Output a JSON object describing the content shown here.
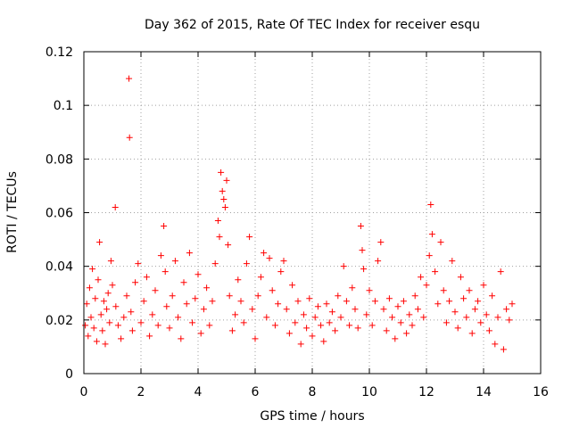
{
  "chart_data": {
    "type": "scatter",
    "title": "Day 362 of 2015, Rate Of TEC Index for receiver esqu",
    "xlabel": "GPS time / hours",
    "ylabel": "ROTI / TECUs",
    "xlim": [
      0,
      16
    ],
    "ylim": [
      0,
      0.12
    ],
    "x_ticks": [
      0,
      2,
      4,
      6,
      8,
      10,
      12,
      14,
      16
    ],
    "x_tick_labels": [
      "0",
      "2",
      "4",
      "6",
      "8",
      "10",
      "12",
      "14",
      "16"
    ],
    "y_ticks": [
      0,
      0.02,
      0.04,
      0.06,
      0.08,
      0.1,
      0.12
    ],
    "y_tick_labels": [
      "0",
      "0.02",
      "0.04",
      "0.06",
      "0.08",
      "0.1",
      "0.12"
    ],
    "grid": true,
    "marker": "+",
    "color": "#ff0000",
    "series": [
      {
        "name": "ROTI",
        "points": [
          [
            0.05,
            0.018
          ],
          [
            0.1,
            0.026
          ],
          [
            0.15,
            0.014
          ],
          [
            0.2,
            0.032
          ],
          [
            0.25,
            0.021
          ],
          [
            0.3,
            0.039
          ],
          [
            0.35,
            0.017
          ],
          [
            0.4,
            0.028
          ],
          [
            0.45,
            0.012
          ],
          [
            0.5,
            0.035
          ],
          [
            0.55,
            0.049
          ],
          [
            0.6,
            0.022
          ],
          [
            0.65,
            0.016
          ],
          [
            0.7,
            0.027
          ],
          [
            0.75,
            0.011
          ],
          [
            0.8,
            0.024
          ],
          [
            0.85,
            0.03
          ],
          [
            0.9,
            0.019
          ],
          [
            0.95,
            0.042
          ],
          [
            1.0,
            0.033
          ],
          [
            1.1,
            0.062
          ],
          [
            1.12,
            0.025
          ],
          [
            1.2,
            0.018
          ],
          [
            1.3,
            0.013
          ],
          [
            1.4,
            0.021
          ],
          [
            1.5,
            0.029
          ],
          [
            1.58,
            0.11
          ],
          [
            1.6,
            0.088
          ],
          [
            1.65,
            0.023
          ],
          [
            1.7,
            0.016
          ],
          [
            1.8,
            0.034
          ],
          [
            1.9,
            0.041
          ],
          [
            2.0,
            0.019
          ],
          [
            2.1,
            0.027
          ],
          [
            2.2,
            0.036
          ],
          [
            2.3,
            0.014
          ],
          [
            2.4,
            0.022
          ],
          [
            2.5,
            0.031
          ],
          [
            2.6,
            0.018
          ],
          [
            2.7,
            0.044
          ],
          [
            2.8,
            0.055
          ],
          [
            2.85,
            0.038
          ],
          [
            2.9,
            0.025
          ],
          [
            3.0,
            0.017
          ],
          [
            3.1,
            0.029
          ],
          [
            3.2,
            0.042
          ],
          [
            3.3,
            0.021
          ],
          [
            3.4,
            0.013
          ],
          [
            3.5,
            0.034
          ],
          [
            3.6,
            0.026
          ],
          [
            3.7,
            0.045
          ],
          [
            3.8,
            0.019
          ],
          [
            3.9,
            0.028
          ],
          [
            4.0,
            0.037
          ],
          [
            4.1,
            0.015
          ],
          [
            4.2,
            0.024
          ],
          [
            4.3,
            0.032
          ],
          [
            4.4,
            0.018
          ],
          [
            4.5,
            0.027
          ],
          [
            4.6,
            0.041
          ],
          [
            4.7,
            0.057
          ],
          [
            4.75,
            0.051
          ],
          [
            4.8,
            0.075
          ],
          [
            4.85,
            0.068
          ],
          [
            4.9,
            0.065
          ],
          [
            4.95,
            0.062
          ],
          [
            5.0,
            0.072
          ],
          [
            5.05,
            0.048
          ],
          [
            5.1,
            0.029
          ],
          [
            5.2,
            0.016
          ],
          [
            5.3,
            0.022
          ],
          [
            5.4,
            0.035
          ],
          [
            5.5,
            0.027
          ],
          [
            5.6,
            0.019
          ],
          [
            5.7,
            0.041
          ],
          [
            5.8,
            0.051
          ],
          [
            5.9,
            0.024
          ],
          [
            6.0,
            0.013
          ],
          [
            6.1,
            0.029
          ],
          [
            6.2,
            0.036
          ],
          [
            6.3,
            0.045
          ],
          [
            6.4,
            0.021
          ],
          [
            6.5,
            0.043
          ],
          [
            6.6,
            0.031
          ],
          [
            6.7,
            0.018
          ],
          [
            6.8,
            0.026
          ],
          [
            6.9,
            0.038
          ],
          [
            7.0,
            0.042
          ],
          [
            7.1,
            0.024
          ],
          [
            7.2,
            0.015
          ],
          [
            7.3,
            0.033
          ],
          [
            7.4,
            0.019
          ],
          [
            7.5,
            0.027
          ],
          [
            7.6,
            0.011
          ],
          [
            7.7,
            0.022
          ],
          [
            7.8,
            0.017
          ],
          [
            7.9,
            0.028
          ],
          [
            8.0,
            0.014
          ],
          [
            8.1,
            0.021
          ],
          [
            8.2,
            0.025
          ],
          [
            8.3,
            0.018
          ],
          [
            8.4,
            0.012
          ],
          [
            8.5,
            0.026
          ],
          [
            8.6,
            0.019
          ],
          [
            8.7,
            0.023
          ],
          [
            8.8,
            0.016
          ],
          [
            8.9,
            0.029
          ],
          [
            9.0,
            0.021
          ],
          [
            9.1,
            0.04
          ],
          [
            9.2,
            0.027
          ],
          [
            9.3,
            0.018
          ],
          [
            9.4,
            0.032
          ],
          [
            9.5,
            0.024
          ],
          [
            9.6,
            0.017
          ],
          [
            9.7,
            0.055
          ],
          [
            9.75,
            0.046
          ],
          [
            9.8,
            0.039
          ],
          [
            9.9,
            0.022
          ],
          [
            10.0,
            0.031
          ],
          [
            10.1,
            0.018
          ],
          [
            10.2,
            0.027
          ],
          [
            10.3,
            0.042
          ],
          [
            10.4,
            0.049
          ],
          [
            10.5,
            0.024
          ],
          [
            10.6,
            0.016
          ],
          [
            10.7,
            0.028
          ],
          [
            10.8,
            0.021
          ],
          [
            10.9,
            0.013
          ],
          [
            11.0,
            0.025
          ],
          [
            11.1,
            0.019
          ],
          [
            11.2,
            0.027
          ],
          [
            11.3,
            0.015
          ],
          [
            11.4,
            0.022
          ],
          [
            11.5,
            0.018
          ],
          [
            11.6,
            0.029
          ],
          [
            11.7,
            0.024
          ],
          [
            11.8,
            0.036
          ],
          [
            11.9,
            0.021
          ],
          [
            12.0,
            0.033
          ],
          [
            12.1,
            0.044
          ],
          [
            12.15,
            0.063
          ],
          [
            12.2,
            0.052
          ],
          [
            12.3,
            0.038
          ],
          [
            12.4,
            0.026
          ],
          [
            12.5,
            0.049
          ],
          [
            12.6,
            0.031
          ],
          [
            12.7,
            0.019
          ],
          [
            12.8,
            0.027
          ],
          [
            12.9,
            0.042
          ],
          [
            13.0,
            0.023
          ],
          [
            13.1,
            0.017
          ],
          [
            13.2,
            0.036
          ],
          [
            13.3,
            0.028
          ],
          [
            13.4,
            0.021
          ],
          [
            13.5,
            0.031
          ],
          [
            13.6,
            0.015
          ],
          [
            13.7,
            0.024
          ],
          [
            13.8,
            0.027
          ],
          [
            13.9,
            0.019
          ],
          [
            14.0,
            0.033
          ],
          [
            14.1,
            0.022
          ],
          [
            14.2,
            0.016
          ],
          [
            14.3,
            0.029
          ],
          [
            14.4,
            0.011
          ],
          [
            14.5,
            0.021
          ],
          [
            14.6,
            0.038
          ],
          [
            14.7,
            0.009
          ],
          [
            14.8,
            0.024
          ],
          [
            14.9,
            0.02
          ],
          [
            15.0,
            0.026
          ]
        ]
      }
    ]
  }
}
